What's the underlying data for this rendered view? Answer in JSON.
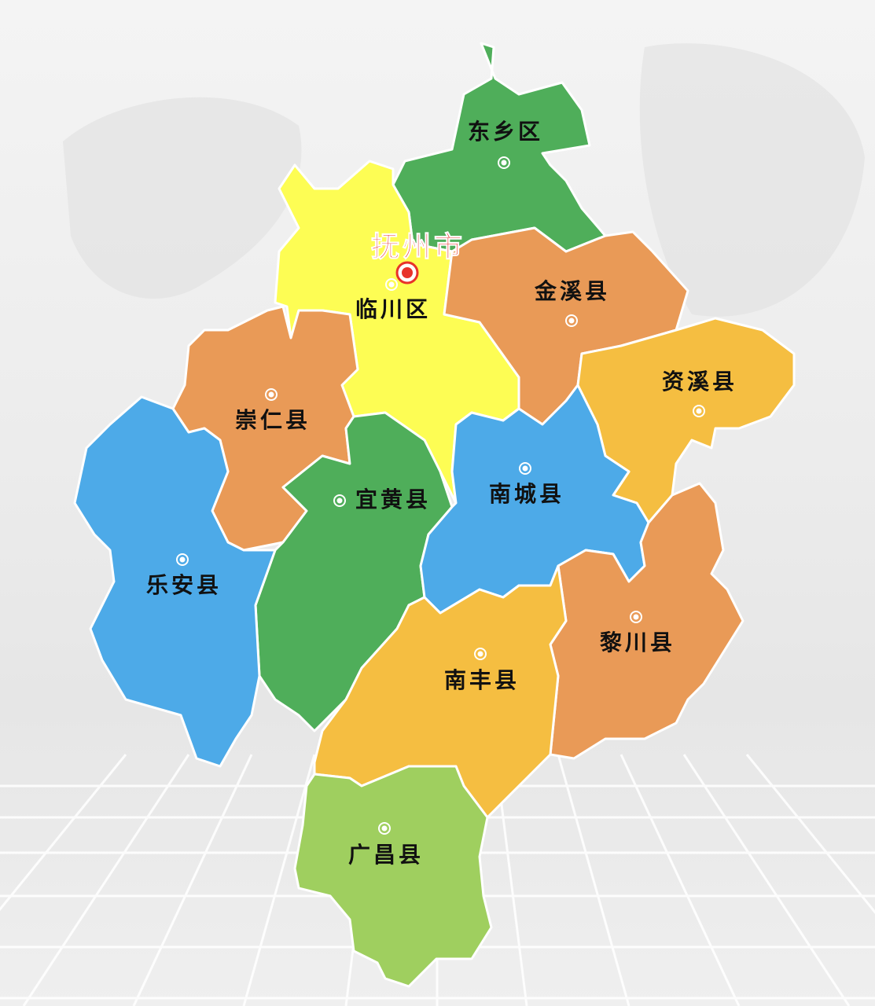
{
  "map": {
    "city": {
      "name": "抚州市",
      "color": "#e8322a"
    },
    "regions": [
      {
        "name": "东乡区",
        "color": "#4fae5a"
      },
      {
        "name": "临川区",
        "color": "#fdfd54"
      },
      {
        "name": "金溪县",
        "color": "#e99a57"
      },
      {
        "name": "资溪县",
        "color": "#f5be41"
      },
      {
        "name": "崇仁县",
        "color": "#e99a57"
      },
      {
        "name": "宜黄县",
        "color": "#4fae5a"
      },
      {
        "name": "南城县",
        "color": "#4daae8"
      },
      {
        "name": "乐安县",
        "color": "#4daae8"
      },
      {
        "name": "黎川县",
        "color": "#e99a57"
      },
      {
        "name": "南丰县",
        "color": "#f5be41"
      },
      {
        "name": "广昌县",
        "color": "#9fcf5f"
      }
    ]
  }
}
